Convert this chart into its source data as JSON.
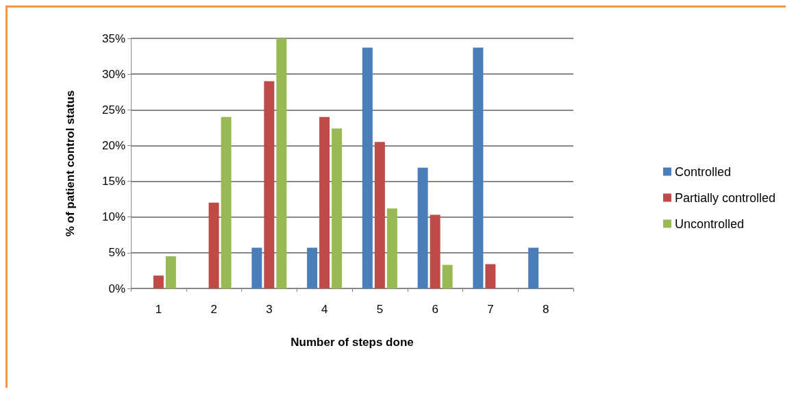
{
  "chart_data": {
    "type": "bar",
    "xlabel": "Number of steps done",
    "ylabel": "% of patient control status",
    "categories": [
      "1",
      "2",
      "3",
      "4",
      "5",
      "6",
      "7",
      "8"
    ],
    "series": [
      {
        "name": "Controlled",
        "color": "#4a7ebb",
        "values": [
          0,
          0,
          5.7,
          5.7,
          33.7,
          16.9,
          33.7,
          5.7
        ]
      },
      {
        "name": "Partially controlled",
        "color": "#be4b48",
        "values": [
          1.8,
          12,
          29,
          24,
          20.5,
          10.3,
          3.4,
          0
        ]
      },
      {
        "name": "Uncontrolled",
        "color": "#98b954",
        "values": [
          4.5,
          24,
          35,
          22.4,
          11.2,
          3.3,
          0,
          0
        ]
      }
    ],
    "ylim": [
      0,
      35
    ],
    "yticks": [
      {
        "value": 0,
        "label": "0%"
      },
      {
        "value": 5,
        "label": "5%"
      },
      {
        "value": 10,
        "label": "10%"
      },
      {
        "value": 15,
        "label": "15%"
      },
      {
        "value": 20,
        "label": "20%"
      },
      {
        "value": 25,
        "label": "25%"
      },
      {
        "value": 30,
        "label": "30%"
      },
      {
        "value": 35,
        "label": "35%"
      }
    ],
    "grid": "y",
    "legend": "right"
  }
}
